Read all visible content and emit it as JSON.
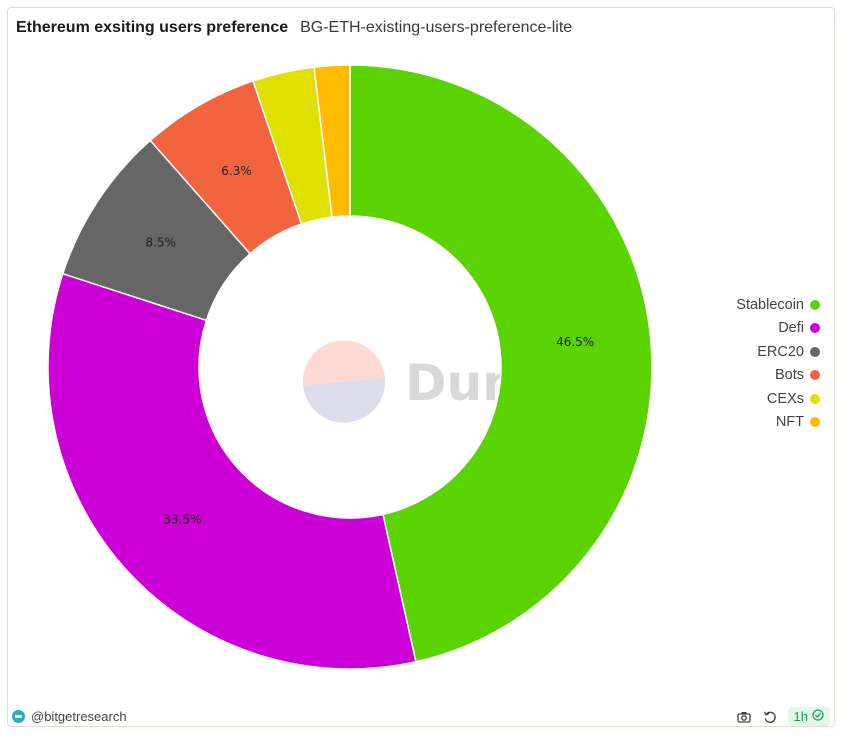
{
  "header": {
    "title": "Ethereum exsiting users preference",
    "subtitle": "BG-ETH-existing-users-preference-lite"
  },
  "watermark": {
    "text": "Dune"
  },
  "chart_data": {
    "type": "pie",
    "variant": "donut",
    "categories": [
      "Stablecoin",
      "Defi",
      "ERC20",
      "Bots",
      "CEXs",
      "NFT"
    ],
    "values": [
      46.5,
      33.5,
      8.5,
      6.3,
      3.3,
      1.9
    ],
    "data_labels": [
      "46.5%",
      "33.5%",
      "8.5%",
      "6.3%",
      "",
      ""
    ],
    "colors": [
      "#5bd300",
      "#cc00d6",
      "#666666",
      "#f2643f",
      "#dfdf00",
      "#ffbb00"
    ],
    "legend_position": "right"
  },
  "footer": {
    "author": "@bitgetresearch",
    "refresh_badge": "1h",
    "icons": {
      "camera": "camera-icon",
      "refresh": "refresh-icon",
      "check": "check-circle-icon"
    }
  }
}
